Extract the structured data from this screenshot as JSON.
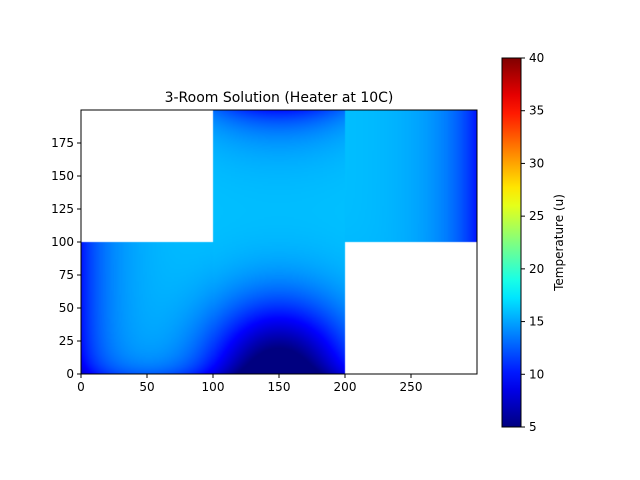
{
  "chart_data": {
    "type": "heatmap",
    "title": "3-Room Solution (Heater at 10C)",
    "xlabel": "",
    "ylabel": "",
    "xlim": [
      0,
      300
    ],
    "ylim": [
      0,
      200
    ],
    "x_ticks": [
      0,
      50,
      100,
      150,
      200,
      250
    ],
    "y_ticks": [
      0,
      25,
      50,
      75,
      100,
      125,
      150,
      175
    ],
    "grid": false,
    "colormap": "jet",
    "colorbar": {
      "label": "Temperature (u)",
      "vmin": 5,
      "vmax": 40,
      "ticks": [
        5,
        10,
        15,
        20,
        25,
        30,
        35,
        40
      ]
    },
    "rooms": [
      {
        "name": "",
        "x": [
          0,
          100
        ],
        "y": [
          0,
          100
        ]
      },
      {
        "name": "",
        "x": [
          100,
          200
        ],
        "y": [
          0,
          200
        ]
      },
      {
        "name": "",
        "x": [
          200,
          300
        ],
        "y": [
          100,
          200
        ]
      }
    ],
    "heater_temperature": 10,
    "approx_temperature_range": [
      5,
      16
    ],
    "features": {
      "cold_spot": {
        "x": 150,
        "y": 0,
        "value": 5
      },
      "left_wall_value": 10,
      "right_wall_value": 10,
      "top_center_value": 10,
      "interior_max_value": 16
    }
  }
}
